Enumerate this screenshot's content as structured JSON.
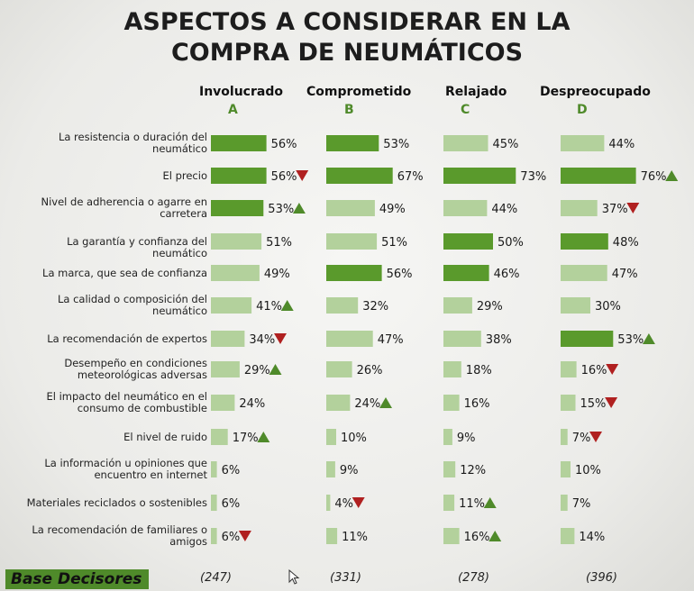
{
  "title_line1": "ASPECTOS A CONSIDERAR EN LA",
  "title_line2": "COMPRA DE NEUMÁTICOS",
  "colors": {
    "dark": "#5a9a2c",
    "light": "#b3d19c",
    "up": "#4f8a2a",
    "down": "#b02020"
  },
  "chart_data": {
    "type": "bar",
    "title": "ASPECTOS A CONSIDERAR EN LA COMPRA DE NEUMÁTICOS",
    "categories": [
      "La resistencia o duración del neumático",
      "El precio",
      "Nivel de adherencia o agarre en carretera",
      "La garantía y confianza del neumático",
      "La marca, que sea de confianza",
      "La calidad o composición del neumático",
      "La recomendación de expertos",
      "Desempeño en condiciones meteorológicas adversas",
      "El impacto del neumático en el consumo de combustible",
      "El nivel de ruido",
      "La información u opiniones que encuentro en internet",
      "Materiales reciclados o sostenibles",
      "La recomendación de familiares o amigos"
    ],
    "category_lines": [
      [
        "La resistencia o duración del",
        "neumático"
      ],
      [
        "El precio"
      ],
      [
        "Nivel de adherencia o agarre en",
        "carretera"
      ],
      [
        "La garantía y confianza del neumático"
      ],
      [
        "La marca, que sea de confianza"
      ],
      [
        "La calidad o composición del",
        "neumático"
      ],
      [
        "La recomendación de expertos"
      ],
      [
        "Desempeño en condiciones",
        "meteorológicas adversas"
      ],
      [
        "El impacto del neumático en el",
        "consumo de combustible"
      ],
      [
        "El nivel de ruido"
      ],
      [
        "La información u opiniones que",
        "encuentro en internet"
      ],
      [
        "Materiales reciclados o sostenibles"
      ],
      [
        "La recomendación de familiares o",
        "amigos"
      ]
    ],
    "series": [
      {
        "name": "Involucrado",
        "letter": "A",
        "base": "(247)",
        "values": [
          56,
          56,
          53,
          51,
          49,
          41,
          34,
          29,
          24,
          17,
          6,
          6,
          6
        ],
        "highlight": [
          true,
          true,
          true,
          false,
          false,
          false,
          false,
          false,
          false,
          false,
          false,
          false,
          false
        ],
        "markers": [
          "",
          "down",
          "up",
          "",
          "",
          "up",
          "down",
          "up",
          "",
          "up",
          "",
          "",
          "down"
        ]
      },
      {
        "name": "Comprometido",
        "letter": "B",
        "base": "(331)",
        "values": [
          53,
          67,
          49,
          51,
          56,
          32,
          47,
          26,
          24,
          10,
          9,
          4,
          11
        ],
        "highlight": [
          true,
          true,
          false,
          false,
          true,
          false,
          false,
          false,
          false,
          false,
          false,
          false,
          false
        ],
        "markers": [
          "",
          "",
          "",
          "",
          "",
          "",
          "",
          "",
          "up",
          "",
          "",
          "down",
          ""
        ]
      },
      {
        "name": "Relajado",
        "letter": "C",
        "base": "(278)",
        "values": [
          45,
          73,
          44,
          50,
          46,
          29,
          38,
          18,
          16,
          9,
          12,
          11,
          16
        ],
        "highlight": [
          false,
          true,
          false,
          true,
          true,
          false,
          false,
          false,
          false,
          false,
          false,
          false,
          false
        ],
        "markers": [
          "",
          "",
          "",
          "",
          "",
          "",
          "",
          "",
          "",
          "",
          "",
          "up",
          "up"
        ]
      },
      {
        "name": "Despreocupado",
        "letter": "D",
        "base": "(396)",
        "values": [
          44,
          76,
          37,
          48,
          47,
          30,
          53,
          16,
          15,
          7,
          10,
          7,
          14
        ],
        "highlight": [
          false,
          true,
          false,
          true,
          false,
          false,
          true,
          false,
          false,
          false,
          false,
          false,
          false
        ],
        "markers": [
          "",
          "up",
          "down",
          "",
          "",
          "",
          "up",
          "down",
          "down",
          "down",
          "",
          "",
          ""
        ]
      }
    ],
    "value_suffix": "%",
    "base_label": "Base Decisores"
  }
}
